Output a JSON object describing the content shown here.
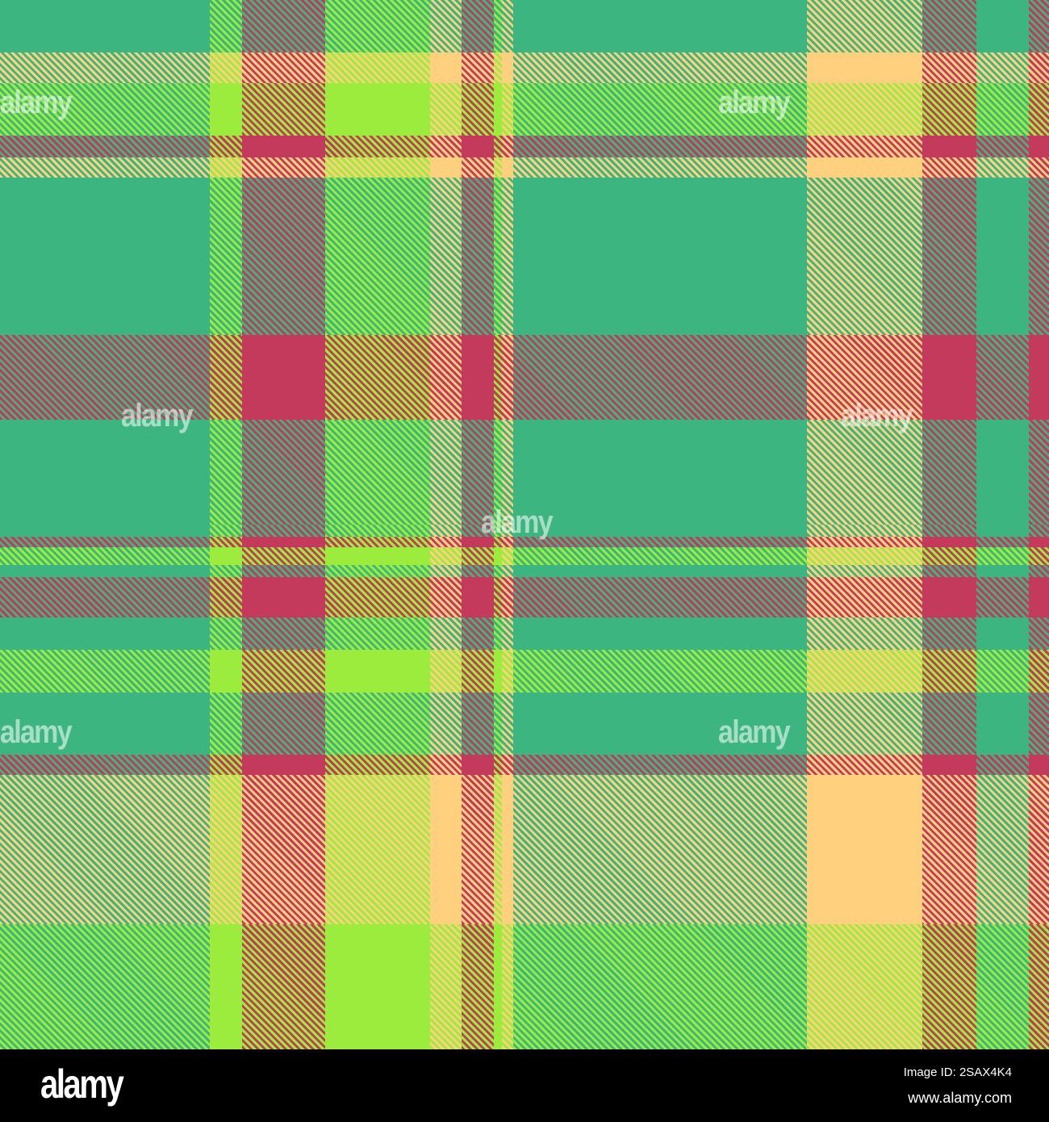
{
  "palette": {
    "teal": "#3db581",
    "lime": "#9cec3e",
    "red": "#c33a5c",
    "peach": "#ffd17f"
  },
  "watermark": "alamy",
  "footer": {
    "logo": "alamy",
    "image_id": "Image ID: 2SAX4K4",
    "url": "www.alamy.com"
  }
}
